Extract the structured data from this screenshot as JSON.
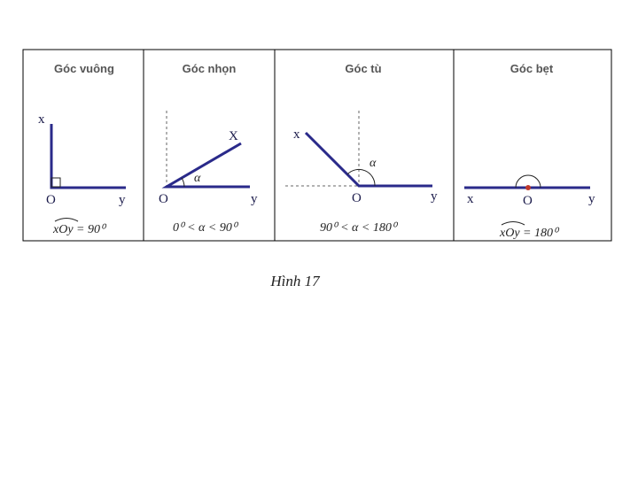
{
  "panels": [
    {
      "title": "Góc vuông",
      "labels": [
        "x",
        "O",
        "y"
      ],
      "formula": {
        "angle": "xOy",
        "rest": " = 90⁰"
      }
    },
    {
      "title": "Góc nhọn",
      "labels": [
        "X",
        "α",
        "O",
        "y"
      ],
      "formula": {
        "rest": "0⁰ < α < 90⁰"
      }
    },
    {
      "title": "Góc tù",
      "labels": [
        "x",
        "α",
        "O",
        "y"
      ],
      "formula": {
        "rest": "90⁰ < α < 180⁰"
      }
    },
    {
      "title": "Góc bẹt",
      "labels": [
        "x",
        "O",
        "y"
      ],
      "formula": {
        "angle": "xOy",
        "rest": " = 180⁰"
      }
    }
  ],
  "caption": "Hình 17"
}
